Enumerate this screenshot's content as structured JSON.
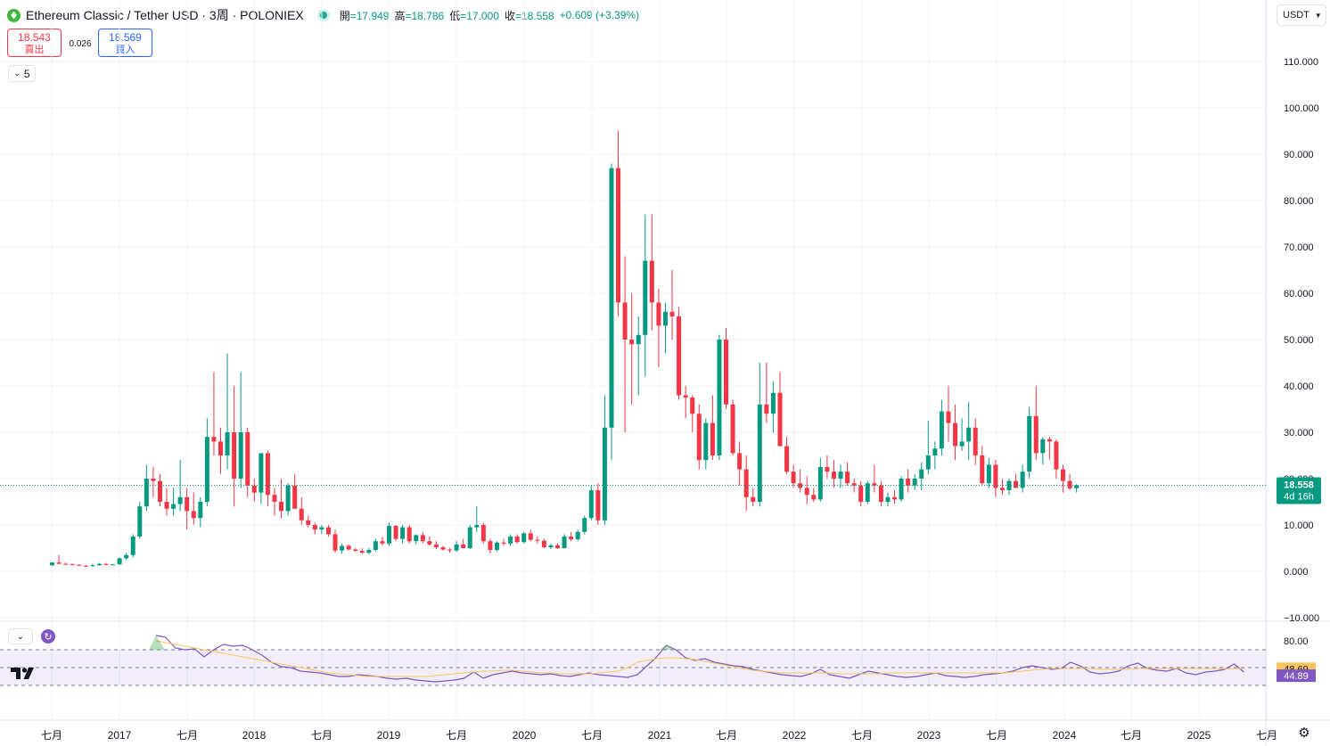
{
  "header": {
    "symbol_title": "Ethereum Classic / Tether USD · 3周 · POLONIEX",
    "ohlc": [
      {
        "key": "開",
        "value": "=17.949"
      },
      {
        "key": "高",
        "value": "=18.786"
      },
      {
        "key": "低",
        "value": "=17.000"
      },
      {
        "key": "收",
        "value": "=18.558"
      }
    ],
    "change": "+0.609 (+3.39%)",
    "currency_label": "USDT"
  },
  "trade": {
    "sell_price": "18.543",
    "sell_label": "賣出",
    "spread": "0.026",
    "buy_price": "18.569",
    "buy_label": "買入"
  },
  "indicator_collapse_count": "5",
  "colors": {
    "up": "#089981",
    "down": "#f23645",
    "rsi_line": "#7e57c2",
    "rsi_ma": "#f7c55f",
    "band_fill": "#7e57c2",
    "price_badge": "#089981"
  },
  "icons": {
    "symbol_logo": "etc-logo-icon",
    "collapse": "chevron-down-icon",
    "refresh": "refresh-icon",
    "settings": "gear-icon",
    "brand": "tradingview-logo-icon"
  },
  "chart_data": [
    {
      "type": "candlestick",
      "y_axis": {
        "ticks": [
          "110.000",
          "100.000",
          "90.000",
          "80.000",
          "70.000",
          "60.000",
          "50.000",
          "40.000",
          "30.000",
          "20.000",
          "10.000",
          "0.000",
          "−10.000"
        ],
        "ylim": [
          -10,
          110
        ]
      },
      "x_axis": {
        "ticks": [
          "七月",
          "2017",
          "七月",
          "2018",
          "七月",
          "2019",
          "七月",
          "2020",
          "七月",
          "2021",
          "七月",
          "2022",
          "七月",
          "2023",
          "七月",
          "2024",
          "七月",
          "2025",
          "七月"
        ]
      },
      "last_price": "18.558",
      "countdown": "4d 16h",
      "candles_ohlc": [
        [
          1.3,
          2.0,
          1.2,
          1.9
        ],
        [
          1.9,
          3.5,
          1.7,
          1.6
        ],
        [
          1.6,
          1.9,
          1.4,
          1.5
        ],
        [
          1.5,
          1.7,
          1.3,
          1.4
        ],
        [
          1.4,
          1.5,
          1.1,
          1.2
        ],
        [
          1.2,
          1.4,
          1.0,
          1.1
        ],
        [
          1.1,
          1.6,
          1.0,
          1.3
        ],
        [
          1.3,
          1.8,
          1.2,
          1.6
        ],
        [
          1.6,
          1.8,
          1.3,
          1.4
        ],
        [
          1.4,
          1.6,
          1.3,
          1.5
        ],
        [
          1.5,
          3.0,
          1.4,
          2.8
        ],
        [
          2.8,
          4.0,
          2.5,
          3.5
        ],
        [
          3.5,
          8.0,
          3.0,
          7.5
        ],
        [
          7.5,
          15.0,
          7.0,
          14.0
        ],
        [
          14.0,
          23.0,
          13.0,
          20.0
        ],
        [
          20.0,
          22.5,
          16.0,
          19.5
        ],
        [
          19.5,
          21.0,
          14.0,
          15.0
        ],
        [
          15.0,
          18.0,
          12.0,
          13.5
        ],
        [
          13.5,
          18.0,
          12.0,
          14.5
        ],
        [
          14.5,
          24.0,
          13.0,
          16.0
        ],
        [
          16.0,
          18.0,
          9.0,
          13.0
        ],
        [
          13.0,
          17.0,
          10.0,
          11.5
        ],
        [
          11.5,
          16.0,
          9.5,
          15.0
        ],
        [
          15.0,
          33.0,
          14.0,
          29.0
        ],
        [
          29.0,
          43.0,
          25.0,
          28.0
        ],
        [
          28.0,
          31.0,
          21.0,
          25.0
        ],
        [
          25.0,
          47.0,
          22.0,
          30.0
        ],
        [
          30.0,
          40.0,
          14.0,
          20.0
        ],
        [
          20.0,
          43.0,
          18.0,
          30.0
        ],
        [
          30.0,
          31.0,
          16.0,
          18.5
        ],
        [
          18.5,
          20.0,
          15.0,
          17.0
        ],
        [
          17.0,
          25.0,
          14.5,
          25.5
        ],
        [
          25.5,
          26.0,
          14.0,
          16.5
        ],
        [
          16.5,
          18.0,
          12.0,
          15.0
        ],
        [
          15.0,
          20.0,
          11.5,
          13.0
        ],
        [
          13.0,
          19.0,
          12.0,
          18.5
        ],
        [
          18.5,
          21.0,
          14.0,
          13.5
        ],
        [
          13.5,
          16.0,
          10.0,
          11.0
        ],
        [
          11.0,
          12.0,
          9.5,
          10.0
        ],
        [
          10.0,
          10.5,
          8.0,
          9.0
        ],
        [
          9.0,
          10.0,
          8.0,
          9.5
        ],
        [
          9.5,
          10.0,
          7.5,
          8.0
        ],
        [
          8.0,
          9.0,
          4.0,
          4.5
        ],
        [
          4.5,
          6.0,
          3.8,
          5.5
        ],
        [
          5.5,
          5.8,
          4.5,
          4.7
        ],
        [
          4.7,
          5.0,
          4.2,
          4.4
        ],
        [
          4.4,
          5.0,
          3.8,
          4.0
        ],
        [
          4.0,
          5.0,
          3.7,
          4.6
        ],
        [
          4.6,
          7.0,
          4.3,
          6.5
        ],
        [
          6.5,
          7.5,
          5.5,
          6.0
        ],
        [
          6.0,
          10.5,
          5.5,
          9.8
        ],
        [
          9.8,
          10.0,
          6.5,
          7.0
        ],
        [
          7.0,
          10.0,
          6.0,
          9.5
        ],
        [
          9.5,
          10.0,
          6.0,
          6.5
        ],
        [
          6.5,
          8.0,
          5.8,
          7.8
        ],
        [
          7.8,
          8.5,
          6.0,
          6.5
        ],
        [
          6.5,
          7.5,
          5.5,
          5.8
        ],
        [
          5.8,
          6.5,
          4.8,
          5.2
        ],
        [
          5.2,
          5.5,
          4.5,
          4.7
        ],
        [
          4.7,
          5.0,
          4.0,
          4.5
        ],
        [
          4.5,
          6.5,
          4.2,
          5.8
        ],
        [
          5.8,
          7.0,
          5.0,
          5.0
        ],
        [
          5.0,
          10.0,
          4.8,
          9.5
        ],
        [
          9.5,
          14.0,
          8.5,
          10.0
        ],
        [
          10.0,
          10.5,
          6.0,
          6.5
        ],
        [
          6.5,
          7.0,
          3.8,
          4.6
        ],
        [
          4.6,
          6.5,
          4.3,
          6.2
        ],
        [
          6.2,
          7.0,
          5.5,
          6.0
        ],
        [
          6.0,
          8.0,
          5.5,
          7.5
        ],
        [
          7.5,
          8.0,
          6.0,
          6.3
        ],
        [
          6.3,
          8.5,
          6.0,
          8.2
        ],
        [
          8.2,
          9.0,
          6.5,
          6.8
        ],
        [
          6.8,
          7.5,
          6.0,
          6.6
        ],
        [
          6.6,
          7.0,
          5.0,
          5.2
        ],
        [
          5.2,
          6.0,
          4.8,
          5.6
        ],
        [
          5.6,
          6.0,
          4.8,
          5.0
        ],
        [
          5.0,
          8.0,
          4.9,
          7.5
        ],
        [
          7.5,
          8.5,
          6.5,
          6.9
        ],
        [
          6.9,
          9.0,
          6.5,
          8.5
        ],
        [
          8.5,
          12.0,
          8.0,
          11.5
        ],
        [
          11.5,
          18.5,
          11.0,
          17.5
        ],
        [
          17.5,
          19.0,
          10.0,
          11.0
        ],
        [
          11.0,
          38.0,
          10.0,
          31.0
        ],
        [
          31.0,
          88.0,
          24.0,
          87.0
        ],
        [
          87.0,
          95.0,
          55.0,
          58.0
        ],
        [
          58.0,
          68.0,
          30.0,
          50.0
        ],
        [
          50.0,
          60.0,
          36.0,
          49.0
        ],
        [
          49.0,
          55.0,
          38.0,
          51.0
        ],
        [
          51.0,
          77.0,
          42.0,
          67.0
        ],
        [
          67.0,
          77.0,
          52.0,
          58.0
        ],
        [
          58.0,
          61.0,
          44.0,
          53.0
        ],
        [
          53.0,
          58.0,
          47.0,
          56.0
        ],
        [
          56.0,
          65.0,
          50.0,
          55.0
        ],
        [
          55.0,
          57.0,
          37.0,
          38.0
        ],
        [
          38.0,
          40.0,
          33.0,
          37.5
        ],
        [
          37.5,
          38.0,
          30.0,
          34.0
        ],
        [
          34.0,
          36.0,
          22.0,
          24.0
        ],
        [
          24.0,
          33.0,
          22.0,
          32.0
        ],
        [
          32.0,
          38.0,
          24.0,
          25.0
        ],
        [
          25.0,
          51.0,
          24.0,
          50.0
        ],
        [
          50.0,
          52.5,
          35.0,
          36.0
        ],
        [
          36.0,
          37.0,
          25.0,
          25.5
        ],
        [
          25.5,
          28.0,
          18.5,
          22.0
        ],
        [
          22.0,
          25.0,
          13.0,
          16.0
        ],
        [
          16.0,
          18.0,
          14.0,
          15.0
        ],
        [
          15.0,
          45.0,
          14.0,
          36.0
        ],
        [
          36.0,
          45.0,
          32.0,
          34.0
        ],
        [
          34.0,
          41.0,
          30.0,
          38.5
        ],
        [
          38.5,
          43.0,
          28.0,
          27.0
        ],
        [
          27.0,
          29.0,
          21.0,
          21.5
        ],
        [
          21.5,
          23.0,
          18.0,
          19.0
        ],
        [
          19.0,
          22.0,
          17.0,
          18.0
        ],
        [
          18.0,
          20.5,
          14.5,
          16.5
        ],
        [
          16.5,
          18.0,
          15.0,
          15.5
        ],
        [
          15.5,
          24.5,
          15.0,
          22.5
        ],
        [
          22.5,
          25.0,
          20.0,
          21.5
        ],
        [
          21.5,
          24.0,
          18.0,
          20.0
        ],
        [
          20.0,
          23.0,
          18.0,
          21.5
        ],
        [
          21.5,
          23.5,
          18.5,
          19.0
        ],
        [
          19.0,
          20.0,
          17.0,
          18.5
        ],
        [
          18.5,
          19.5,
          14.0,
          15.0
        ],
        [
          15.0,
          19.5,
          14.5,
          19.0
        ],
        [
          19.0,
          23.0,
          17.0,
          18.5
        ],
        [
          18.5,
          19.5,
          14.0,
          15.0
        ],
        [
          15.0,
          17.0,
          14.0,
          16.0
        ],
        [
          16.0,
          17.5,
          14.5,
          15.5
        ],
        [
          15.5,
          20.5,
          15.0,
          20.0
        ],
        [
          20.0,
          22.0,
          17.0,
          18.5
        ],
        [
          18.5,
          21.0,
          17.5,
          20.0
        ],
        [
          20.0,
          23.5,
          17.5,
          22.0
        ],
        [
          22.0,
          32.5,
          21.0,
          25.0
        ],
        [
          25.0,
          28.0,
          22.0,
          26.5
        ],
        [
          26.5,
          37.0,
          25.0,
          34.5
        ],
        [
          34.5,
          40.0,
          28.0,
          32.0
        ],
        [
          32.0,
          36.0,
          24.0,
          27.0
        ],
        [
          27.0,
          33.0,
          26.0,
          28.0
        ],
        [
          28.0,
          36.5,
          24.0,
          31.0
        ],
        [
          31.0,
          33.0,
          23.0,
          25.0
        ],
        [
          25.0,
          27.0,
          18.5,
          19.0
        ],
        [
          19.0,
          24.5,
          18.0,
          23.0
        ],
        [
          23.0,
          24.0,
          16.0,
          18.0
        ],
        [
          18.0,
          20.0,
          16.5,
          17.5
        ],
        [
          17.5,
          20.0,
          16.5,
          19.5
        ],
        [
          19.5,
          21.0,
          18.0,
          18.0
        ],
        [
          18.0,
          23.0,
          17.0,
          21.5
        ],
        [
          21.5,
          35.5,
          20.0,
          33.5
        ],
        [
          33.5,
          40.0,
          24.0,
          25.5
        ],
        [
          25.5,
          29.0,
          23.0,
          28.5
        ],
        [
          28.5,
          29.0,
          24.0,
          28.0
        ],
        [
          28.0,
          28.5,
          20.0,
          22.0
        ],
        [
          22.0,
          23.0,
          17.0,
          19.5
        ],
        [
          19.5,
          21.0,
          17.5,
          17.9
        ],
        [
          17.949,
          18.786,
          17.0,
          18.558
        ]
      ]
    },
    {
      "type": "line",
      "name": "RSI",
      "y_axis": {
        "ticks": [
          "80.00"
        ]
      },
      "value_labels": [
        "48.69",
        "44.89"
      ],
      "series": [
        {
          "role": "rsi",
          "color": "#7e57c2",
          "values": [
            86,
            84,
            72,
            70,
            71,
            62,
            70,
            76,
            74,
            75,
            70,
            64,
            56,
            51,
            50,
            46,
            45,
            44,
            42,
            40,
            40,
            42,
            41,
            40,
            38,
            37,
            38,
            36,
            35,
            34,
            35,
            36,
            38,
            45,
            38,
            42,
            44,
            46,
            44,
            43,
            42,
            43,
            41,
            40,
            42,
            44,
            42,
            41,
            40,
            39,
            42,
            52,
            62,
            75,
            70,
            61,
            58,
            60,
            56,
            54,
            52,
            51,
            48,
            46,
            44,
            42,
            41,
            40,
            43,
            48,
            42,
            40,
            38,
            42,
            46,
            44,
            42,
            40,
            39,
            40,
            42,
            44,
            41,
            40,
            39,
            40,
            42,
            43,
            44,
            46,
            50,
            52,
            50,
            48,
            49,
            56,
            52,
            45,
            43,
            44,
            46,
            52,
            55,
            49,
            47,
            46,
            49,
            44,
            42,
            45,
            46,
            48,
            54,
            45
          ]
        },
        {
          "role": "ma",
          "color": "#f7c55f",
          "values": [
            80,
            78,
            76,
            74,
            72,
            70,
            68,
            66,
            64,
            62,
            60,
            58,
            56,
            54,
            52,
            50,
            48,
            46,
            44,
            43,
            42,
            41,
            40,
            40,
            40,
            40,
            40,
            40,
            40,
            41,
            42,
            43,
            44,
            45,
            46,
            46,
            47,
            47,
            46,
            45,
            44,
            44,
            43,
            43,
            43,
            43,
            44,
            45,
            46,
            50,
            56,
            58,
            60,
            61,
            61,
            60,
            59,
            57,
            55,
            53,
            51,
            49,
            47,
            46,
            45,
            44,
            44,
            44,
            44,
            44,
            44,
            43,
            43,
            43,
            43,
            43,
            44,
            44,
            44,
            44,
            44,
            44,
            44,
            44,
            44,
            44,
            44,
            44,
            44,
            45,
            46,
            47,
            48,
            49,
            49,
            49,
            49,
            49,
            48,
            48,
            48,
            48,
            49,
            49,
            49,
            49,
            49,
            49,
            49,
            49,
            48.8,
            48.7,
            48.69,
            48.69
          ]
        }
      ]
    }
  ]
}
